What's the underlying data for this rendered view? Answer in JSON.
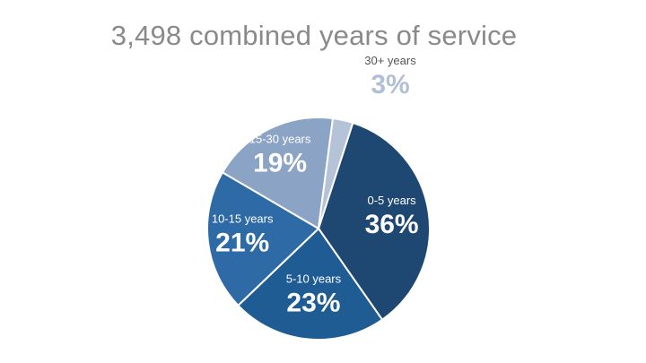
{
  "chart_data": {
    "type": "pie",
    "title": "3,498 combined years of service",
    "slices": [
      {
        "label": "0-5 years",
        "value": 36,
        "value_label": "36%",
        "color": "#1e4872",
        "text_color": "#ffffff"
      },
      {
        "label": "5-10 years",
        "value": 23,
        "value_label": "23%",
        "color": "#1f5c94",
        "text_color": "#ffffff"
      },
      {
        "label": "10-15 years",
        "value": 21,
        "value_label": "21%",
        "color": "#2d6aa6",
        "text_color": "#ffffff"
      },
      {
        "label": "15-30 years",
        "value": 19,
        "value_label": "19%",
        "color": "#8ba3c4",
        "text_color": "#ffffff"
      },
      {
        "label": "30+ years",
        "value": 3,
        "value_label": "3%",
        "color": "#b5c3d8",
        "text_color": "#b0bfd6"
      }
    ]
  }
}
